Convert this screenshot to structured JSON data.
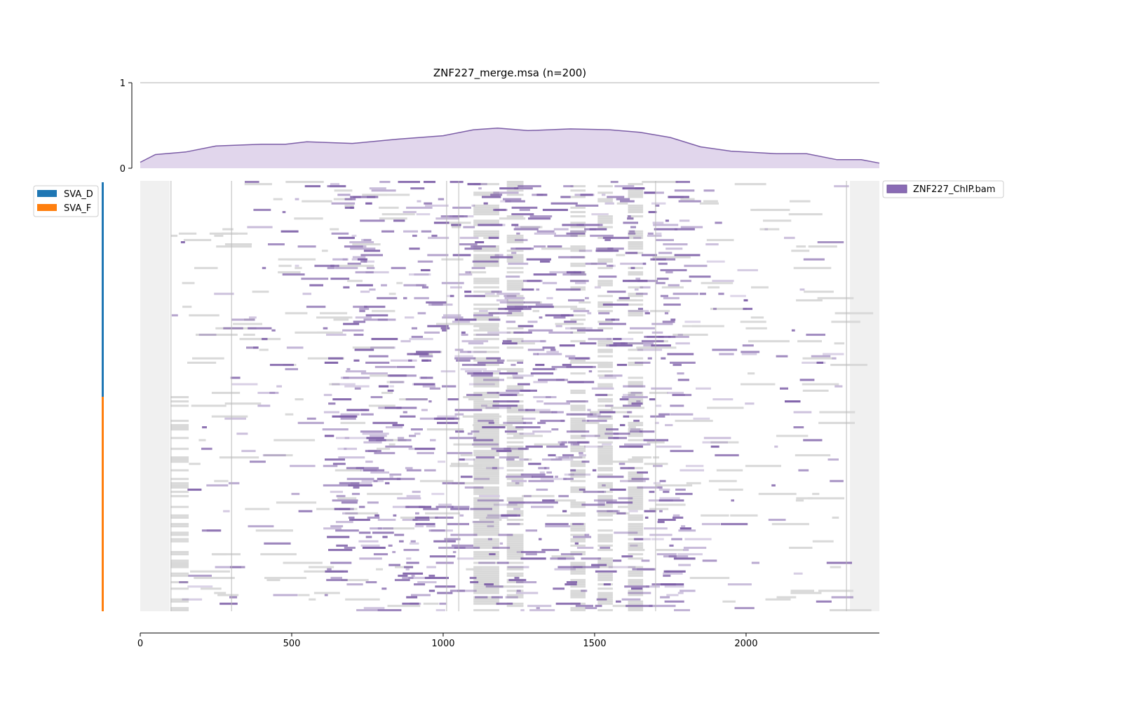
{
  "chart_data": [
    {
      "type": "area",
      "title": "ZNF227_merge.msa (n=200)",
      "xlabel": "",
      "ylabel": "",
      "xlim": [
        0,
        2440
      ],
      "ylim": [
        0,
        1
      ],
      "yticks": [
        0,
        1
      ],
      "fill_color": "#e1d6ec",
      "line_color": "#7b5ca6",
      "series": [
        {
          "x": [
            0,
            50,
            150,
            250,
            400,
            480,
            550,
            700,
            850,
            1000,
            1100,
            1180,
            1280,
            1420,
            1550,
            1650,
            1750,
            1850,
            1950,
            2100,
            2200,
            2300,
            2380,
            2440
          ],
          "y": [
            0.07,
            0.16,
            0.19,
            0.26,
            0.28,
            0.28,
            0.31,
            0.29,
            0.34,
            0.38,
            0.45,
            0.47,
            0.44,
            0.46,
            0.45,
            0.42,
            0.36,
            0.25,
            0.2,
            0.17,
            0.17,
            0.1,
            0.1,
            0.06
          ]
        }
      ]
    },
    {
      "type": "heatmap",
      "xlim": [
        0,
        2440
      ],
      "xticks": [
        0,
        500,
        1000,
        1500,
        2000
      ],
      "n_rows": 200,
      "signal_color": "#7b5ca6",
      "gap_color": "#d9d9d9",
      "legend": [
        {
          "label": "ZNF227_ChIP.bam",
          "color": "#8a6bb5"
        }
      ]
    }
  ],
  "row_groups": {
    "legend": [
      {
        "label": "SVA_D",
        "color": "#1f77b4",
        "rows": 100
      },
      {
        "label": "SVA_F",
        "color": "#ff7f0e",
        "rows": 100
      }
    ]
  }
}
